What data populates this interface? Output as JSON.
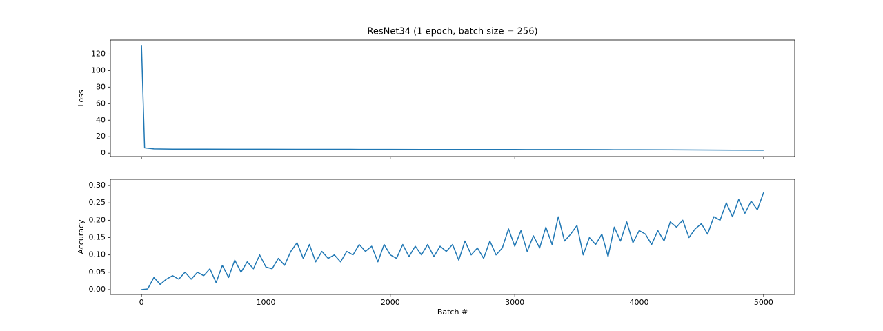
{
  "chart_data": [
    {
      "type": "line",
      "title": "ResNet34 (1 epoch, batch size = 256)",
      "y_label": "Loss",
      "x": [
        0,
        25,
        100,
        250,
        500,
        750,
        1000,
        1250,
        1500,
        1750,
        2000,
        2250,
        2500,
        2750,
        3000,
        3250,
        3500,
        3750,
        4000,
        4250,
        4500,
        4750,
        5000
      ],
      "series": [
        {
          "color": "#1f77b4",
          "values": [
            131,
            6.5,
            5.3,
            5.0,
            5.0,
            4.9,
            4.9,
            4.8,
            4.8,
            4.7,
            4.7,
            4.6,
            4.6,
            4.5,
            4.5,
            4.4,
            4.4,
            4.3,
            4.2,
            4.1,
            3.9,
            3.7,
            3.6
          ]
        }
      ],
      "xlim": [
        -250,
        5250
      ],
      "ylim": [
        -4,
        137
      ],
      "yticks": [
        0,
        20,
        40,
        60,
        80,
        100,
        120
      ]
    },
    {
      "type": "line",
      "x_label": "Batch #",
      "y_label": "Accuracy",
      "x": [
        0,
        50,
        100,
        150,
        200,
        250,
        300,
        350,
        400,
        450,
        500,
        550,
        600,
        650,
        700,
        750,
        800,
        850,
        900,
        950,
        1000,
        1050,
        1100,
        1150,
        1200,
        1250,
        1300,
        1350,
        1400,
        1450,
        1500,
        1550,
        1600,
        1650,
        1700,
        1750,
        1800,
        1850,
        1900,
        1950,
        2000,
        2050,
        2100,
        2150,
        2200,
        2250,
        2300,
        2350,
        2400,
        2450,
        2500,
        2550,
        2600,
        2650,
        2700,
        2750,
        2800,
        2850,
        2900,
        2950,
        3000,
        3050,
        3100,
        3150,
        3200,
        3250,
        3300,
        3350,
        3400,
        3450,
        3500,
        3550,
        3600,
        3650,
        3700,
        3750,
        3800,
        3850,
        3900,
        3950,
        4000,
        4050,
        4100,
        4150,
        4200,
        4250,
        4300,
        4350,
        4400,
        4450,
        4500,
        4550,
        4600,
        4650,
        4700,
        4750,
        4800,
        4850,
        4900,
        4950,
        5000
      ],
      "series": [
        {
          "color": "#1f77b4",
          "values": [
            0.0,
            0.002,
            0.035,
            0.015,
            0.03,
            0.04,
            0.03,
            0.05,
            0.03,
            0.05,
            0.04,
            0.06,
            0.02,
            0.07,
            0.035,
            0.085,
            0.05,
            0.08,
            0.06,
            0.1,
            0.065,
            0.06,
            0.09,
            0.07,
            0.11,
            0.135,
            0.09,
            0.13,
            0.08,
            0.11,
            0.09,
            0.1,
            0.08,
            0.11,
            0.1,
            0.13,
            0.11,
            0.125,
            0.08,
            0.13,
            0.1,
            0.09,
            0.13,
            0.095,
            0.125,
            0.1,
            0.13,
            0.095,
            0.125,
            0.11,
            0.13,
            0.085,
            0.14,
            0.1,
            0.12,
            0.09,
            0.14,
            0.1,
            0.12,
            0.175,
            0.125,
            0.17,
            0.11,
            0.155,
            0.12,
            0.18,
            0.13,
            0.21,
            0.14,
            0.16,
            0.185,
            0.1,
            0.15,
            0.13,
            0.16,
            0.095,
            0.18,
            0.14,
            0.195,
            0.135,
            0.17,
            0.16,
            0.13,
            0.17,
            0.14,
            0.195,
            0.18,
            0.2,
            0.15,
            0.175,
            0.19,
            0.16,
            0.21,
            0.2,
            0.25,
            0.21,
            0.26,
            0.22,
            0.255,
            0.23,
            0.28
          ]
        }
      ],
      "xlim": [
        -250,
        5250
      ],
      "ylim": [
        -0.014,
        0.318
      ],
      "xticks": [
        0,
        1000,
        2000,
        3000,
        4000,
        5000
      ],
      "yticks": [
        {
          "value": 0,
          "label": "0.00"
        },
        {
          "value": 0.05,
          "label": "0.05"
        },
        {
          "value": 0.1,
          "label": "0.10"
        },
        {
          "value": 0.15,
          "label": "0.15"
        },
        {
          "value": 0.2,
          "label": "0.20"
        },
        {
          "value": 0.25,
          "label": "0.25"
        },
        {
          "value": 0.3,
          "label": "0.30"
        }
      ]
    }
  ]
}
